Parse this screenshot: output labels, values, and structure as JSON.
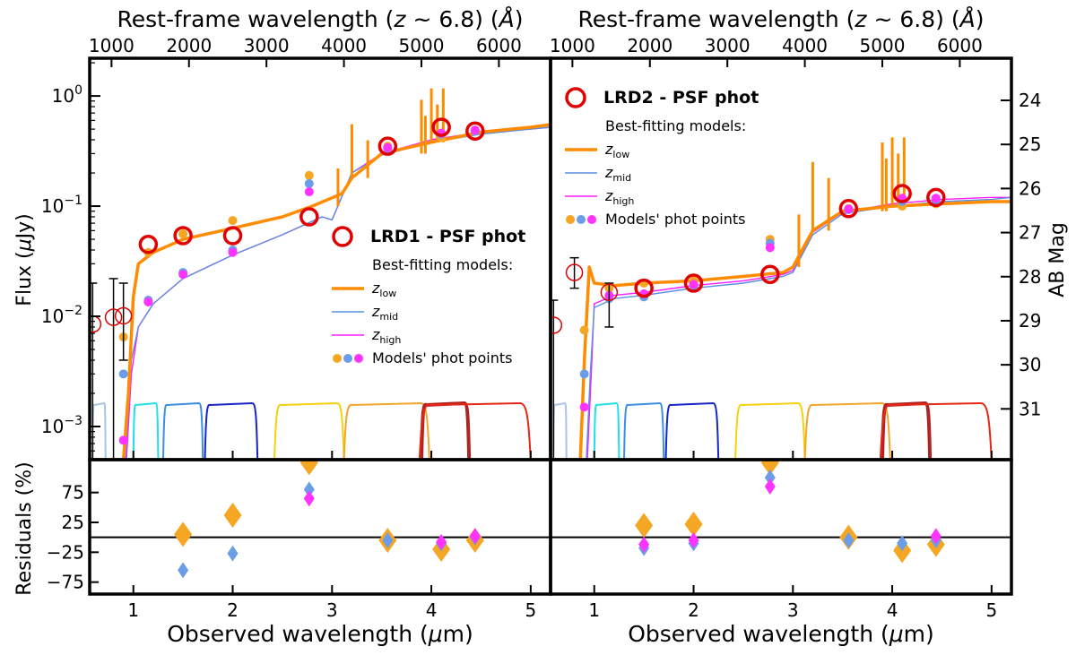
{
  "chart_data": {
    "type": "scatter",
    "description_units": {
      "x": "observed wavelength (um)",
      "y": "flux (uJy)"
    },
    "shared": {
      "top_xlabel": "Rest-frame wavelength (z ~ 6.8) (Å)",
      "top_xlabel_parts": {
        "a": "Rest-frame wavelength (",
        "z": "z",
        "b": " ~ 6.8) (",
        "ang": "Å",
        "c": ")"
      },
      "bottom_xlabel_parts": {
        "a": "Observed wavelength (",
        "mu": "μ",
        "b": "m)"
      },
      "ylabel_parts": {
        "a": "Flux (",
        "mu": "μ",
        "b": "Jy)"
      },
      "resid_ylabel": "Residuals (%)",
      "right_ylabel": "AB Mag",
      "xlim": [
        0.56,
        5.2
      ],
      "ylim": [
        0.0005,
        2.2
      ],
      "resid_ylim": [
        -95,
        130
      ],
      "x_ticks": [
        "1",
        "2",
        "3",
        "4",
        "5"
      ],
      "x_tick_values": [
        1,
        2,
        3,
        4,
        5
      ],
      "top_ticks": [
        "1000",
        "2000",
        "3000",
        "4000",
        "5000",
        "6000"
      ],
      "top_tick_values": [
        1000,
        2000,
        3000,
        4000,
        5000,
        6000
      ],
      "y_ticks": [
        {
          "v": 1,
          "m": "10",
          "e": "0"
        },
        {
          "v": 0.1,
          "m": "10",
          "e": "−1"
        },
        {
          "v": 0.01,
          "m": "10",
          "e": "−2"
        },
        {
          "v": 0.001,
          "m": "10",
          "e": "−3"
        }
      ],
      "resid_ticks": [
        "75",
        "25",
        "−25",
        "−75"
      ],
      "resid_tick_values": [
        75,
        25,
        -25,
        -75
      ],
      "ab_mag_ticks": [
        "24",
        "25",
        "26",
        "27",
        "28",
        "29",
        "30",
        "31"
      ],
      "ab_mag_values": [
        24,
        25,
        26,
        27,
        28,
        29,
        30,
        31
      ],
      "filters": [
        {
          "lo": 0.59,
          "hi": 0.72,
          "color": "#a9c4e6",
          "x": [
            0.59,
            0.72
          ]
        },
        {
          "lo": 1.0,
          "hi": 1.25,
          "color": "#1fe0e8"
        },
        {
          "lo": 1.3,
          "hi": 1.7,
          "color": "#3a8fe0"
        },
        {
          "lo": 1.72,
          "hi": 2.25,
          "color": "#1826c8"
        },
        {
          "lo": 2.42,
          "hi": 3.12,
          "color": "#f5d00f"
        },
        {
          "lo": 3.12,
          "hi": 3.98,
          "color": "#f2a52a"
        },
        {
          "lo": 3.9,
          "hi": 4.38,
          "color": "#ad2424"
        },
        {
          "lo": 3.88,
          "hi": 5.0,
          "color": "#e82616"
        }
      ],
      "legend": {
        "best": "Best-fitting models:",
        "zlow": {
          "z": "z",
          "sub": "low"
        },
        "zmid": {
          "z": "z",
          "sub": "mid"
        },
        "zhigh": {
          "z": "z",
          "sub": "high"
        },
        "phot": "Models' phot points"
      },
      "colors": {
        "zlow": "#ff8c00",
        "zmid": "#5a8fe0",
        "zhigh": "#ff1aff",
        "obs": "#e00000",
        "orange_pt": "#f5a623",
        "blue_pt": "#6b9de8",
        "magenta_pt": "#ff33ff"
      }
    },
    "panels": [
      {
        "name": "LRD1",
        "legend_title": "LRD1 - PSF phot",
        "observed": [
          {
            "x": 0.59,
            "y": 0.0085,
            "err": [
              0.0004,
              0.02
            ]
          },
          {
            "x": 0.8,
            "y": 0.0098,
            "err": [
              0.0004,
              0.022
            ]
          },
          {
            "x": 0.9,
            "y": 0.0101,
            "err": [
              0.004,
              0.02
            ]
          },
          {
            "x": 1.15,
            "y": 0.045,
            "err": null
          },
          {
            "x": 1.5,
            "y": 0.054,
            "err": null
          },
          {
            "x": 2.0,
            "y": 0.054,
            "err": null
          },
          {
            "x": 2.77,
            "y": 0.08,
            "err": null
          },
          {
            "x": 3.56,
            "y": 0.35,
            "err": null
          },
          {
            "x": 4.1,
            "y": 0.52,
            "err": null
          },
          {
            "x": 4.44,
            "y": 0.48,
            "err": null
          }
        ],
        "model_points": {
          "zlow": [
            [
              0.9,
              0.0065
            ],
            [
              1.15,
              0.038
            ],
            [
              1.5,
              0.056
            ],
            [
              2.0,
              0.074
            ],
            [
              2.77,
              0.19
            ],
            [
              3.56,
              0.35
            ],
            [
              4.1,
              0.42
            ],
            [
              4.44,
              0.49
            ]
          ],
          "zmid": [
            [
              0.9,
              0.003
            ],
            [
              1.15,
              0.014
            ],
            [
              1.5,
              0.025
            ],
            [
              2.0,
              0.04
            ],
            [
              2.77,
              0.16
            ],
            [
              3.56,
              0.33
            ],
            [
              4.1,
              0.45
            ],
            [
              4.44,
              0.48
            ]
          ],
          "zhigh": [
            [
              0.9,
              0.00075
            ],
            [
              1.15,
              0.0135
            ],
            [
              1.5,
              0.024
            ],
            [
              2.0,
              0.038
            ],
            [
              2.77,
              0.135
            ],
            [
              3.56,
              0.34
            ],
            [
              4.1,
              0.46
            ],
            [
              4.44,
              0.49
            ]
          ]
        },
        "curve_zlow": [
          [
            0.56,
            0.0005
          ],
          [
            0.9,
            0.0005
          ],
          [
            0.95,
            0.002
          ],
          [
            1.0,
            0.015
          ],
          [
            1.05,
            0.03
          ],
          [
            1.2,
            0.038
          ],
          [
            1.5,
            0.05
          ],
          [
            2.0,
            0.063
          ],
          [
            2.5,
            0.08
          ],
          [
            2.8,
            0.1
          ],
          [
            3.1,
            0.13
          ],
          [
            3.2,
            0.18
          ],
          [
            3.5,
            0.3
          ],
          [
            4.0,
            0.38
          ],
          [
            4.5,
            0.47
          ],
          [
            5.0,
            0.52
          ],
          [
            5.2,
            0.55
          ]
        ],
        "curve_zmid": [
          [
            0.56,
            0.0005
          ],
          [
            0.92,
            0.0005
          ],
          [
            0.98,
            0.004
          ],
          [
            1.05,
            0.008
          ],
          [
            1.2,
            0.013
          ],
          [
            1.5,
            0.022
          ],
          [
            2.0,
            0.036
          ],
          [
            2.5,
            0.055
          ],
          [
            2.9,
            0.08
          ],
          [
            3.0,
            0.075
          ],
          [
            3.2,
            0.2
          ],
          [
            3.5,
            0.29
          ],
          [
            4.0,
            0.38
          ],
          [
            4.5,
            0.45
          ],
          [
            5.0,
            0.5
          ],
          [
            5.2,
            0.52
          ]
        ],
        "curve_zhigh": [
          [
            0.56,
            0.0005
          ],
          [
            0.93,
            0.0005
          ],
          [
            0.98,
            0.003
          ],
          [
            1.05,
            0.008
          ],
          [
            1.2,
            0.013
          ],
          [
            1.5,
            0.022
          ],
          [
            2.0,
            0.036
          ],
          [
            2.5,
            0.055
          ],
          [
            2.9,
            0.08
          ],
          [
            3.0,
            0.075
          ],
          [
            3.2,
            0.2
          ],
          [
            3.5,
            0.3
          ],
          [
            4.0,
            0.4
          ],
          [
            4.5,
            0.47
          ],
          [
            5.0,
            0.5
          ],
          [
            5.2,
            0.52
          ]
        ],
        "residuals": [
          {
            "x": 1.5,
            "v": [
              [
                "zlow",
                5
              ],
              [
                "zmid",
                -55
              ]
            ]
          },
          {
            "x": 2.0,
            "v": [
              [
                "zlow",
                37
              ],
              [
                "zmid",
                -27
              ]
            ]
          },
          {
            "x": 2.77,
            "v": [
              [
                "zlow",
                125
              ],
              [
                "zmid",
                80
              ],
              [
                "zhigh",
                65
              ]
            ]
          },
          {
            "x": 3.56,
            "v": [
              [
                "zlow",
                -5
              ],
              [
                "zmid",
                -5
              ]
            ]
          },
          {
            "x": 4.1,
            "v": [
              [
                "zlow",
                -20
              ],
              [
                "zmid",
                -10
              ],
              [
                "zhigh",
                -8
              ]
            ]
          },
          {
            "x": 4.44,
            "v": [
              [
                "zlow",
                -5
              ],
              [
                "zmid",
                0
              ],
              [
                "zhigh",
                2
              ]
            ]
          }
        ]
      },
      {
        "name": "LRD2",
        "legend_title": "LRD2 - PSF phot",
        "observed": [
          {
            "x": 0.59,
            "y": 0.0083,
            "err": [
              0.0004,
              0.014
            ]
          },
          {
            "x": 0.8,
            "y": 0.025,
            "err": [
              0.018,
              0.034
            ]
          },
          {
            "x": 1.15,
            "y": 0.0165,
            "err": [
              0.008,
              0.02
            ]
          },
          {
            "x": 1.5,
            "y": 0.018,
            "err": null
          },
          {
            "x": 2.0,
            "y": 0.02,
            "err": null
          },
          {
            "x": 2.77,
            "y": 0.024,
            "err": null
          },
          {
            "x": 3.56,
            "y": 0.095,
            "err": null
          },
          {
            "x": 4.1,
            "y": 0.13,
            "err": null
          },
          {
            "x": 4.44,
            "y": 0.12,
            "err": null
          }
        ],
        "model_points": {
          "zlow": [
            [
              0.9,
              0.0075
            ],
            [
              1.15,
              0.018
            ],
            [
              1.5,
              0.02
            ],
            [
              2.0,
              0.021
            ],
            [
              2.77,
              0.05
            ],
            [
              3.56,
              0.095
            ],
            [
              4.1,
              0.1
            ],
            [
              4.44,
              0.105
            ]
          ],
          "zmid": [
            [
              0.9,
              0.003
            ],
            [
              1.15,
              0.0145
            ],
            [
              1.5,
              0.015
            ],
            [
              2.0,
              0.019
            ],
            [
              2.77,
              0.046
            ],
            [
              3.56,
              0.093
            ],
            [
              4.1,
              0.11
            ],
            [
              4.44,
              0.11
            ]
          ],
          "zhigh": [
            [
              0.9,
              0.0015
            ],
            [
              1.15,
              0.0155
            ],
            [
              1.5,
              0.016
            ],
            [
              2.0,
              0.0195
            ],
            [
              2.77,
              0.042
            ],
            [
              3.56,
              0.094
            ],
            [
              4.1,
              0.118
            ],
            [
              4.44,
              0.118
            ]
          ]
        },
        "curve_zlow": [
          [
            0.56,
            0.0005
          ],
          [
            0.86,
            0.0005
          ],
          [
            0.9,
            0.004
          ],
          [
            0.95,
            0.028
          ],
          [
            1.0,
            0.02
          ],
          [
            1.2,
            0.019
          ],
          [
            1.5,
            0.02
          ],
          [
            2.0,
            0.021
          ],
          [
            2.5,
            0.023
          ],
          [
            2.9,
            0.025
          ],
          [
            3.0,
            0.028
          ],
          [
            3.2,
            0.06
          ],
          [
            3.5,
            0.09
          ],
          [
            4.0,
            0.1
          ],
          [
            4.5,
            0.105
          ],
          [
            5.0,
            0.11
          ],
          [
            5.2,
            0.11
          ]
        ],
        "curve_zmid": [
          [
            0.56,
            0.0005
          ],
          [
            0.92,
            0.0005
          ],
          [
            0.96,
            0.003
          ],
          [
            1.0,
            0.012
          ],
          [
            1.2,
            0.0145
          ],
          [
            1.5,
            0.0155
          ],
          [
            2.0,
            0.018
          ],
          [
            2.5,
            0.02
          ],
          [
            2.9,
            0.023
          ],
          [
            3.0,
            0.025
          ],
          [
            3.2,
            0.055
          ],
          [
            3.5,
            0.085
          ],
          [
            4.0,
            0.1
          ],
          [
            4.5,
            0.11
          ],
          [
            5.0,
            0.115
          ],
          [
            5.2,
            0.12
          ]
        ],
        "curve_zhigh": [
          [
            0.56,
            0.0005
          ],
          [
            0.93,
            0.0005
          ],
          [
            0.97,
            0.003
          ],
          [
            1.0,
            0.013
          ],
          [
            1.2,
            0.0155
          ],
          [
            1.5,
            0.0165
          ],
          [
            2.0,
            0.019
          ],
          [
            2.5,
            0.021
          ],
          [
            2.9,
            0.024
          ],
          [
            3.0,
            0.026
          ],
          [
            3.2,
            0.058
          ],
          [
            3.5,
            0.088
          ],
          [
            4.0,
            0.105
          ],
          [
            4.5,
            0.115
          ],
          [
            5.0,
            0.12
          ],
          [
            5.2,
            0.12
          ]
        ],
        "residuals": [
          {
            "x": 1.5,
            "v": [
              [
                "zlow",
                20
              ],
              [
                "zmid",
                -18
              ],
              [
                "zhigh",
                -12
              ]
            ]
          },
          {
            "x": 2.0,
            "v": [
              [
                "zlow",
                22
              ],
              [
                "zmid",
                -10
              ],
              [
                "zhigh",
                -5
              ]
            ]
          },
          {
            "x": 2.77,
            "v": [
              [
                "zlow",
                125
              ],
              [
                "zmid",
                100
              ],
              [
                "zhigh",
                85
              ]
            ]
          },
          {
            "x": 3.56,
            "v": [
              [
                "zlow",
                0
              ],
              [
                "zmid",
                -5
              ]
            ]
          },
          {
            "x": 4.1,
            "v": [
              [
                "zlow",
                -22
              ],
              [
                "zmid",
                -10
              ]
            ]
          },
          {
            "x": 4.44,
            "v": [
              [
                "zlow",
                -12
              ],
              [
                "zmid",
                -5
              ],
              [
                "zhigh",
                2
              ]
            ]
          }
        ]
      }
    ]
  }
}
